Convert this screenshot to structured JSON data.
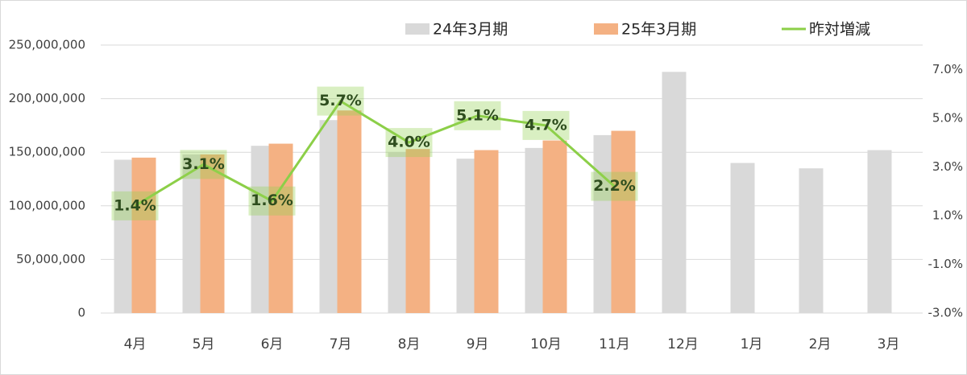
{
  "chart_data": {
    "type": "bar",
    "categories": [
      "4月",
      "5月",
      "6月",
      "7月",
      "8月",
      "9月",
      "10月",
      "11月",
      "12月",
      "1月",
      "2月",
      "3月"
    ],
    "series": [
      {
        "name": "24年3月期",
        "color": "#d9d9d9",
        "values": [
          143000000,
          148000000,
          156000000,
          180000000,
          150000000,
          144000000,
          154000000,
          166000000,
          225000000,
          140000000,
          135000000,
          152000000
        ]
      },
      {
        "name": "25年3月期",
        "color": "#f4b183",
        "values": [
          145000000,
          148000000,
          158000000,
          189000000,
          153000000,
          152000000,
          161000000,
          170000000,
          null,
          null,
          null,
          null
        ]
      },
      {
        "name": "昨対増減",
        "color": "#8ccf48",
        "type": "line",
        "axis": "y2",
        "values": [
          1.4,
          3.1,
          1.6,
          5.7,
          4.0,
          5.1,
          4.7,
          2.2,
          null,
          null,
          null,
          null
        ],
        "value_labels": [
          "1.4%",
          "3.1%",
          "1.6%",
          "5.7%",
          "4.0%",
          "5.1%",
          "4.7%",
          "2.2%",
          null,
          null,
          null,
          null
        ]
      }
    ],
    "ylim": [
      0,
      250000000
    ],
    "yticks": [
      0,
      {
        "value": 50000000,
        "label": "50,000,000"
      },
      {
        "value": 100000000,
        "label": "100,000,000"
      },
      {
        "value": 150000000,
        "label": "150,000,000"
      },
      {
        "value": 200000000,
        "label": "200,000,000"
      },
      {
        "value": 250000000,
        "label": "250,000,000"
      }
    ],
    "y2lim": [
      -3,
      8
    ],
    "y2ticks": [
      {
        "value": -3,
        "label": "-3.0%"
      },
      {
        "value": -1,
        "label": "-1.0%"
      },
      {
        "value": 1,
        "label": "1.0%"
      },
      {
        "value": 3,
        "label": "3.0%"
      },
      {
        "value": 5,
        "label": "5.0%"
      },
      {
        "value": 7,
        "label": "7.0%"
      }
    ],
    "grid": true
  }
}
